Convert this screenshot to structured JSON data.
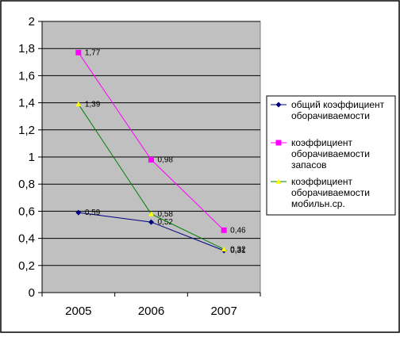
{
  "chart_data": {
    "type": "line",
    "categories": [
      "2005",
      "2006",
      "2007"
    ],
    "ylim": [
      0,
      2
    ],
    "y_ticks": [
      "0",
      "0,2",
      "0,4",
      "0,6",
      "0,8",
      "1",
      "1,2",
      "1,4",
      "1,6",
      "1,8",
      "2"
    ],
    "grid": true,
    "legend_position": "right",
    "plot_background": "#c0c0c0",
    "series": [
      {
        "name": "общий коэффициент оборачиваемости",
        "name_lines": [
          "общий коэффициент",
          "оборачиваемости"
        ],
        "values": [
          0.59,
          0.52,
          0.31
        ],
        "labels": [
          "0,59",
          "0,52",
          "0,31"
        ],
        "color": "#000080",
        "marker": "diamond"
      },
      {
        "name": "коэффициент оборачиваемости запасов",
        "name_lines": [
          "коэффициент",
          "оборачиваемости",
          "запасов"
        ],
        "values": [
          1.77,
          0.98,
          0.46
        ],
        "labels": [
          "1,77",
          "0,98",
          "0,46"
        ],
        "color": "#ff00ff",
        "marker": "square"
      },
      {
        "name": "коэффициент оборачиваемости мобильн.ср.",
        "name_lines": [
          "коэффициент",
          "оборачиваемости",
          "мобильн.ср."
        ],
        "values": [
          1.39,
          0.58,
          0.32
        ],
        "labels": [
          "1,39",
          "0,58",
          "0,32"
        ],
        "color": "#ffff00",
        "line_color": "#008000",
        "marker": "triangle"
      }
    ]
  }
}
